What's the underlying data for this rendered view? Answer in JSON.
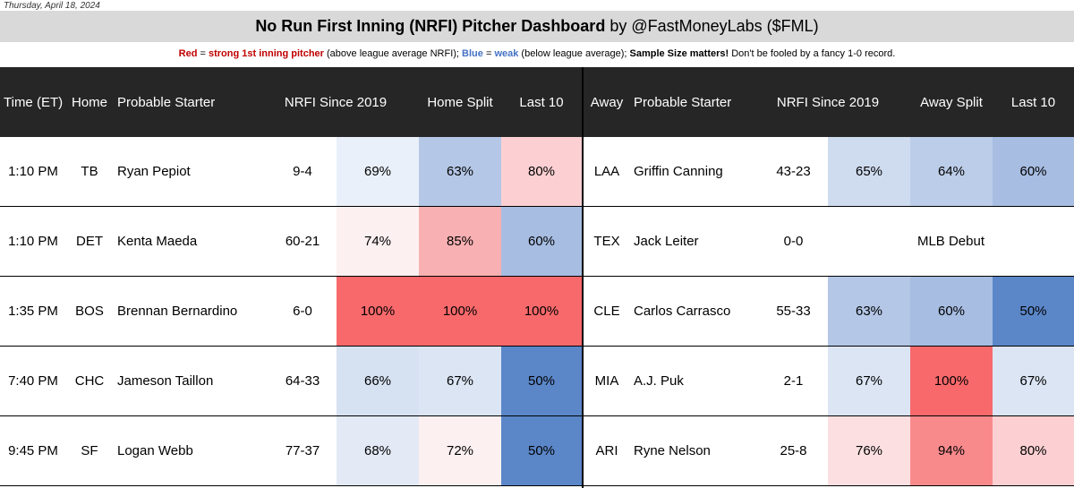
{
  "date": "Thursday, April 18, 2024",
  "title": {
    "main": "No Run First Inning (NRFI) Pitcher Dashboard",
    "byline": " by @FastMoneyLabs ($FML)"
  },
  "legend": {
    "red_word": "Red",
    "red_text": " = ",
    "red_strong": "strong 1st inning pitcher",
    "red_note": " (above league average NRFI); ",
    "blue_word": "Blue",
    "blue_text": " = ",
    "blue_weak": "weak",
    "blue_note": " (below league average); ",
    "sample_bold": "Sample Size matters!",
    "sample_note": " Don't be fooled by a fancy 1-0 record."
  },
  "headers": {
    "time": "Time (ET)",
    "home": "Home",
    "home_starter": "Probable Starter",
    "home_nrfi": "NRFI Since 2019",
    "home_split": "Home Split",
    "home_last10": "Last 10",
    "away": "Away",
    "away_starter": "Probable Starter",
    "away_nrfi": "NRFI Since 2019",
    "away_split": "Away Split",
    "away_last10": "Last 10"
  },
  "colors": {
    "red_strong": "#f8696b",
    "red_med": "#f9a1a3",
    "red_light": "#fcd0d2",
    "red_faint": "#fdf0f1",
    "blue_strong": "#5b87c9",
    "blue_med": "#a7bde2",
    "blue_light": "#c4d4ec",
    "blue_faint": "#dbe5f4",
    "blue_pale": "#eaf0f9",
    "white": "#ffffff"
  },
  "rows": [
    {
      "time": "1:10 PM",
      "home": "TB",
      "home_starter": "Ryan Pepiot",
      "home_nrfi": "9-4",
      "home_pct": "69%",
      "home_pct_color": "#eaf0f9",
      "home_split": "63%",
      "home_split_color": "#b4c7e7",
      "home_last10": "80%",
      "home_last10_color": "#fcd0d2",
      "away": "LAA",
      "away_starter": "Griffin Canning",
      "away_nrfi": "43-23",
      "away_pct": "65%",
      "away_pct_color": "#cfdcf0",
      "away_split": "64%",
      "away_split_color": "#bccde9",
      "away_last10": "60%",
      "away_last10_color": "#a7bde2",
      "away_debut": ""
    },
    {
      "time": "1:10 PM",
      "home": "DET",
      "home_starter": "Kenta Maeda",
      "home_nrfi": "60-21",
      "home_pct": "74%",
      "home_pct_color": "#fdf0f1",
      "home_split": "85%",
      "home_split_color": "#f9b0b2",
      "home_last10": "60%",
      "home_last10_color": "#a7bde2",
      "away": "TEX",
      "away_starter": "Jack Leiter",
      "away_nrfi": "0-0",
      "away_pct": "",
      "away_pct_color": "#ffffff",
      "away_split": "",
      "away_split_color": "#ffffff",
      "away_last10": "",
      "away_last10_color": "#ffffff",
      "away_debut": "MLB Debut"
    },
    {
      "time": "1:35 PM",
      "home": "BOS",
      "home_starter": "Brennan Bernardino",
      "home_nrfi": "6-0",
      "home_pct": "100%",
      "home_pct_color": "#f8696b",
      "home_split": "100%",
      "home_split_color": "#f8696b",
      "home_last10": "100%",
      "home_last10_color": "#f8696b",
      "away": "CLE",
      "away_starter": "Carlos Carrasco",
      "away_nrfi": "55-33",
      "away_pct": "63%",
      "away_pct_color": "#b4c7e7",
      "away_split": "60%",
      "away_split_color": "#a7bde2",
      "away_last10": "50%",
      "away_last10_color": "#5b87c9",
      "away_debut": ""
    },
    {
      "time": "7:40 PM",
      "home": "CHC",
      "home_starter": "Jameson Taillon",
      "home_nrfi": "64-33",
      "home_pct": "66%",
      "home_pct_color": "#d6e1f2",
      "home_split": "67%",
      "home_split_color": "#dbe5f4",
      "home_last10": "50%",
      "home_last10_color": "#5b87c9",
      "away": "MIA",
      "away_starter": "A.J. Puk",
      "away_nrfi": "2-1",
      "away_pct": "67%",
      "away_pct_color": "#dbe5f4",
      "away_split": "100%",
      "away_split_color": "#f8696b",
      "away_last10": "67%",
      "away_last10_color": "#dbe5f4",
      "away_debut": ""
    },
    {
      "time": "9:45 PM",
      "home": "SF",
      "home_starter": "Logan Webb",
      "home_nrfi": "77-37",
      "home_pct": "68%",
      "home_pct_color": "#e3eaf6",
      "home_split": "72%",
      "home_split_color": "#fdf0f1",
      "home_last10": "50%",
      "home_last10_color": "#5b87c9",
      "away": "ARI",
      "away_starter": "Ryne Nelson",
      "away_nrfi": "25-8",
      "away_pct": "76%",
      "away_pct_color": "#fce0e1",
      "away_split": "94%",
      "away_split_color": "#f98a8c",
      "away_last10": "80%",
      "away_last10_color": "#fcd0d2",
      "away_debut": ""
    }
  ]
}
